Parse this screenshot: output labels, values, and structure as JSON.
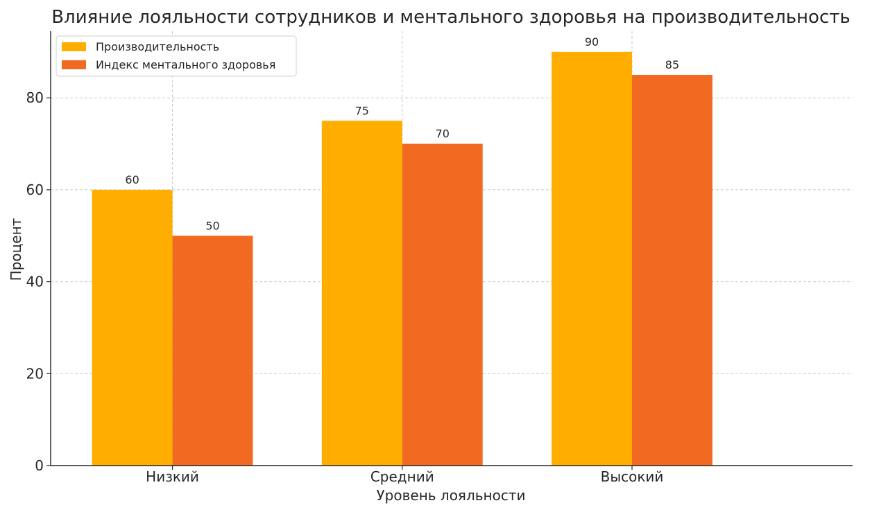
{
  "chart_data": {
    "type": "bar",
    "title": "Влияние лояльности сотрудников и ментального здоровья на производительность",
    "xlabel": "Уровень лояльности",
    "ylabel": "Процент",
    "categories": [
      "Низкий",
      "Средний",
      "Высокий"
    ],
    "series": [
      {
        "name": "Производительность",
        "values": [
          60,
          75,
          90
        ],
        "color": "#FFAE00"
      },
      {
        "name": "Индекс ментального здоровья",
        "values": [
          50,
          70,
          85
        ],
        "color": "#F26A22"
      }
    ],
    "ylim": [
      0,
      94.5
    ],
    "yticks": [
      0,
      20,
      40,
      60,
      80
    ],
    "grid": true,
    "legend": "top-left",
    "data_labels": true
  }
}
